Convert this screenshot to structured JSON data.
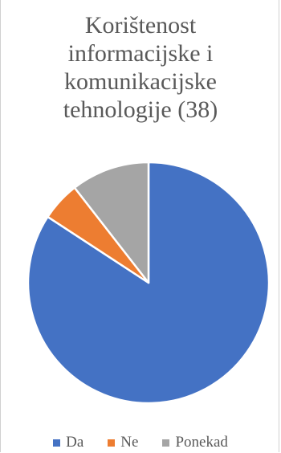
{
  "chart_data": {
    "type": "pie",
    "title": "Korištenost informacijske i komunikacijske tehnologije (38)",
    "categories": [
      "Da",
      "Ne",
      "Ponekad"
    ],
    "values": [
      32,
      2,
      4
    ],
    "colors": [
      "#4472c4",
      "#ed7d31",
      "#a5a5a5"
    ],
    "legend_position": "bottom",
    "series": [
      {
        "values": [
          32,
          2,
          4
        ]
      }
    ]
  }
}
